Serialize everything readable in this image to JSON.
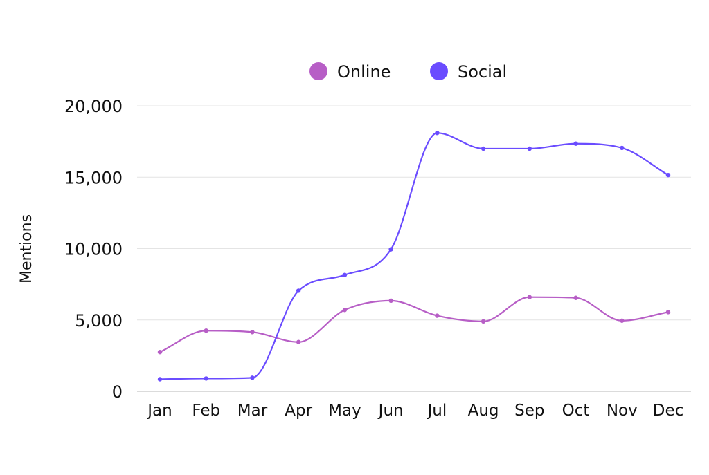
{
  "chart_data": {
    "type": "line",
    "title": "",
    "xlabel": "",
    "ylabel": "Mentions",
    "categories": [
      "Jan",
      "Feb",
      "Mar",
      "Apr",
      "May",
      "Jun",
      "Jul",
      "Aug",
      "Sep",
      "Oct",
      "Nov",
      "Dec"
    ],
    "yticks": [
      0,
      5000,
      10000,
      15000,
      20000
    ],
    "ytick_labels": [
      "0",
      "5,000",
      "10,000",
      "15,000",
      "20,000"
    ],
    "ylim": [
      0,
      20000
    ],
    "grid": true,
    "legend_position": "top-center",
    "smooth": true,
    "series": [
      {
        "name": "Online",
        "color": "#b75ec6",
        "values": [
          2750,
          4250,
          4150,
          3450,
          5700,
          6350,
          5300,
          4900,
          6600,
          6550,
          4950,
          5550
        ]
      },
      {
        "name": "Social",
        "color": "#6a4cff",
        "values": [
          850,
          900,
          950,
          7050,
          8150,
          9950,
          18100,
          17000,
          17000,
          17350,
          17050,
          15150
        ]
      }
    ]
  }
}
